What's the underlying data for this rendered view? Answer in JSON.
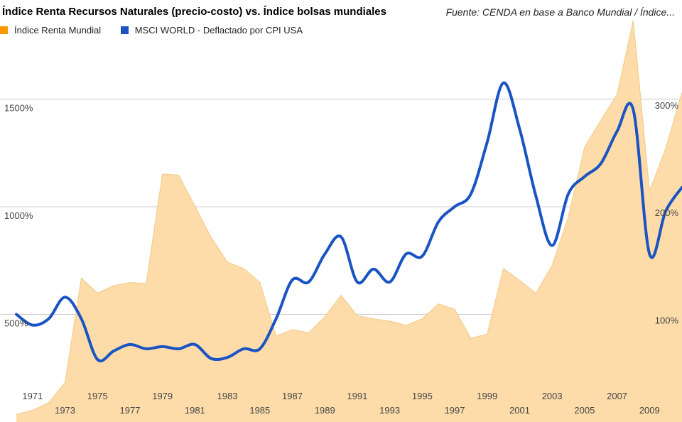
{
  "chart_data": {
    "type": "line",
    "title": "Índice Renta Recursos Naturales (precio-costo) vs. Índice bolsas mundiales",
    "source": "Fuente: CENDA en base a Banco Mundial / Índice...",
    "years": [
      1970,
      1971,
      1972,
      1973,
      1974,
      1975,
      1976,
      1977,
      1978,
      1979,
      1980,
      1981,
      1982,
      1983,
      1984,
      1985,
      1986,
      1987,
      1988,
      1989,
      1990,
      1991,
      1992,
      1993,
      1994,
      1995,
      1996,
      1997,
      1998,
      1999,
      2000,
      2001,
      2002,
      2003,
      2004,
      2005,
      2006,
      2007,
      2008,
      2009,
      2010,
      2011
    ],
    "x_tick_labels": [
      "1971",
      "1973",
      "1975",
      "1977",
      "1979",
      "1981",
      "1983",
      "1985",
      "1987",
      "1989",
      "1991",
      "1993",
      "1995",
      "1997",
      "1999",
      "2001",
      "2003",
      "2005",
      "2007",
      "2009"
    ],
    "left_axis": {
      "ticks": [
        500,
        1000,
        1500
      ],
      "labels": [
        "500%",
        "1000%",
        "1500%"
      ],
      "range": [
        0,
        1960
      ]
    },
    "right_axis": {
      "ticks": [
        100,
        200,
        300
      ],
      "labels": [
        "100%",
        "200%",
        "300%"
      ],
      "range": [
        -3,
        390
      ]
    },
    "series": [
      {
        "name": "Índice Renta Mundial",
        "type": "area",
        "axis": "right",
        "color": "#ff9900",
        "fill": "#fddcaa",
        "values": [
          4,
          8,
          15,
          34,
          131,
          117,
          124,
          127,
          126,
          228,
          227,
          198,
          169,
          146,
          140,
          127,
          77,
          83,
          80,
          95,
          115,
          96,
          93,
          91,
          87,
          93,
          107,
          102,
          75,
          79,
          140,
          129,
          117,
          143,
          188,
          253,
          278,
          302,
          371,
          212,
          252,
          304
        ]
      },
      {
        "name": "MSCI WORLD - Deflactado por CPI USA",
        "type": "line",
        "axis": "left",
        "color": "#1a53c4",
        "values": [
          500,
          450,
          480,
          580,
          480,
          290,
          330,
          360,
          340,
          350,
          340,
          360,
          295,
          300,
          340,
          340,
          480,
          660,
          650,
          780,
          860,
          650,
          710,
          650,
          780,
          770,
          930,
          1000,
          1060,
          1300,
          1575,
          1360,
          1050,
          820,
          1060,
          1140,
          1200,
          1350,
          1450,
          780,
          980,
          1090
        ]
      }
    ]
  }
}
